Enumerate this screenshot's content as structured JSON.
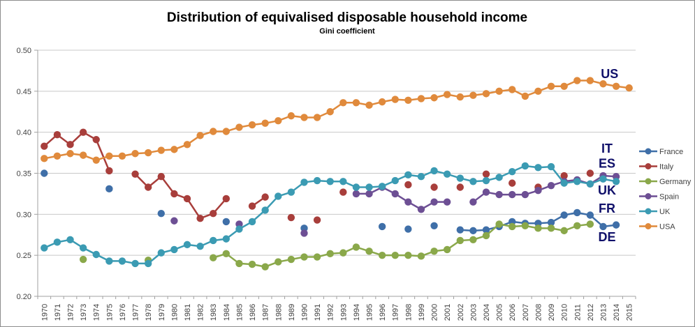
{
  "chart_data": {
    "type": "line",
    "title": "Distribution of equivalised disposable household income",
    "subtitle": "Gini coefficient",
    "xlabel": "",
    "ylabel": "",
    "ylim": [
      0.2,
      0.5
    ],
    "yticks": [
      "0.20",
      "0.25",
      "0.30",
      "0.35",
      "0.40",
      "0.45",
      "0.50"
    ],
    "ytick_values": [
      0.2,
      0.25,
      0.3,
      0.35,
      0.4,
      0.45,
      0.5
    ],
    "grid": true,
    "legend_position": "right",
    "x": [
      1970,
      1971,
      1972,
      1973,
      1974,
      1975,
      1976,
      1977,
      1978,
      1979,
      1980,
      1981,
      1982,
      1983,
      1984,
      1985,
      1986,
      1987,
      1988,
      1989,
      1990,
      1991,
      1992,
      1993,
      1994,
      1995,
      1996,
      1997,
      1998,
      1999,
      2000,
      2001,
      2002,
      2003,
      2004,
      2005,
      2006,
      2007,
      2008,
      2009,
      2010,
      2011,
      2012,
      2013,
      2014,
      2015
    ],
    "series": [
      {
        "name": "France",
        "color": "#3f6fa8",
        "values": [
          0.35,
          null,
          null,
          null,
          null,
          0.331,
          null,
          null,
          null,
          0.301,
          null,
          null,
          null,
          null,
          0.291,
          null,
          null,
          null,
          null,
          null,
          0.283,
          null,
          null,
          null,
          null,
          null,
          0.285,
          null,
          0.282,
          null,
          0.286,
          null,
          0.281,
          0.28,
          0.281,
          0.285,
          0.291,
          0.289,
          0.289,
          0.29,
          0.299,
          0.302,
          0.299,
          0.285,
          0.287,
          null
        ]
      },
      {
        "name": "Italy",
        "color": "#a83e3b",
        "values": [
          0.383,
          0.397,
          0.385,
          0.4,
          0.391,
          0.353,
          null,
          0.349,
          0.333,
          0.346,
          0.325,
          0.319,
          0.295,
          0.301,
          0.319,
          null,
          0.31,
          0.321,
          null,
          0.296,
          null,
          0.293,
          null,
          0.327,
          null,
          null,
          null,
          null,
          0.336,
          null,
          0.333,
          null,
          0.333,
          null,
          0.349,
          null,
          0.338,
          null,
          0.333,
          null,
          0.347,
          null,
          0.35,
          null,
          null,
          null
        ]
      },
      {
        "name": "Germany",
        "color": "#8aa84a",
        "values": [
          null,
          null,
          null,
          0.245,
          null,
          null,
          null,
          null,
          0.244,
          null,
          null,
          null,
          null,
          0.247,
          0.252,
          0.24,
          0.239,
          0.236,
          0.242,
          0.245,
          0.248,
          0.248,
          0.252,
          0.253,
          0.26,
          0.255,
          0.25,
          0.25,
          0.25,
          0.249,
          0.255,
          0.257,
          0.268,
          0.269,
          0.274,
          0.288,
          0.285,
          0.286,
          0.283,
          0.283,
          0.28,
          0.286,
          0.288,
          null,
          null,
          null
        ]
      },
      {
        "name": "Spain",
        "color": "#6d4f94",
        "values": [
          null,
          null,
          null,
          null,
          null,
          null,
          null,
          null,
          null,
          null,
          0.292,
          null,
          null,
          null,
          null,
          0.288,
          null,
          null,
          null,
          null,
          0.277,
          null,
          null,
          null,
          0.325,
          0.325,
          0.333,
          0.325,
          0.315,
          0.306,
          0.315,
          0.315,
          null,
          0.315,
          0.327,
          0.324,
          0.324,
          0.324,
          0.329,
          0.335,
          0.34,
          0.342,
          0.337,
          0.347,
          0.346,
          null
        ]
      },
      {
        "name": "UK",
        "color": "#3b9bb3",
        "values": [
          0.259,
          0.266,
          0.269,
          0.259,
          0.251,
          0.243,
          0.243,
          0.24,
          0.24,
          0.253,
          0.257,
          0.263,
          0.261,
          0.268,
          0.27,
          0.282,
          0.291,
          0.305,
          0.322,
          0.327,
          0.339,
          0.341,
          0.34,
          0.34,
          0.333,
          0.333,
          0.334,
          0.341,
          0.348,
          0.346,
          0.353,
          0.349,
          0.344,
          0.34,
          0.341,
          0.345,
          0.352,
          0.359,
          0.357,
          0.358,
          0.338,
          0.34,
          0.337,
          0.343,
          0.34,
          null
        ]
      },
      {
        "name": "USA",
        "color": "#e08a3c",
        "values": [
          0.368,
          0.371,
          0.374,
          0.372,
          0.366,
          0.371,
          0.371,
          0.374,
          0.375,
          0.378,
          0.379,
          0.385,
          0.396,
          0.401,
          0.401,
          0.406,
          0.409,
          0.411,
          0.414,
          0.42,
          0.418,
          0.418,
          0.425,
          0.436,
          0.436,
          0.433,
          0.437,
          0.44,
          0.439,
          0.441,
          0.442,
          0.446,
          0.443,
          0.445,
          0.447,
          0.45,
          0.452,
          0.444,
          0.45,
          0.456,
          0.456,
          0.463,
          0.463,
          0.459,
          0.456,
          0.454
        ]
      }
    ],
    "annotations": [
      {
        "text": "US",
        "year": 2013.5,
        "value": 0.466
      },
      {
        "text": "IT",
        "year": 2013.3,
        "value": 0.375
      },
      {
        "text": "ES",
        "year": 2013.3,
        "value": 0.357
      },
      {
        "text": "UK",
        "year": 2013.3,
        "value": 0.324
      },
      {
        "text": "FR",
        "year": 2013.3,
        "value": 0.302
      },
      {
        "text": "DE",
        "year": 2013.3,
        "value": 0.267
      }
    ]
  }
}
